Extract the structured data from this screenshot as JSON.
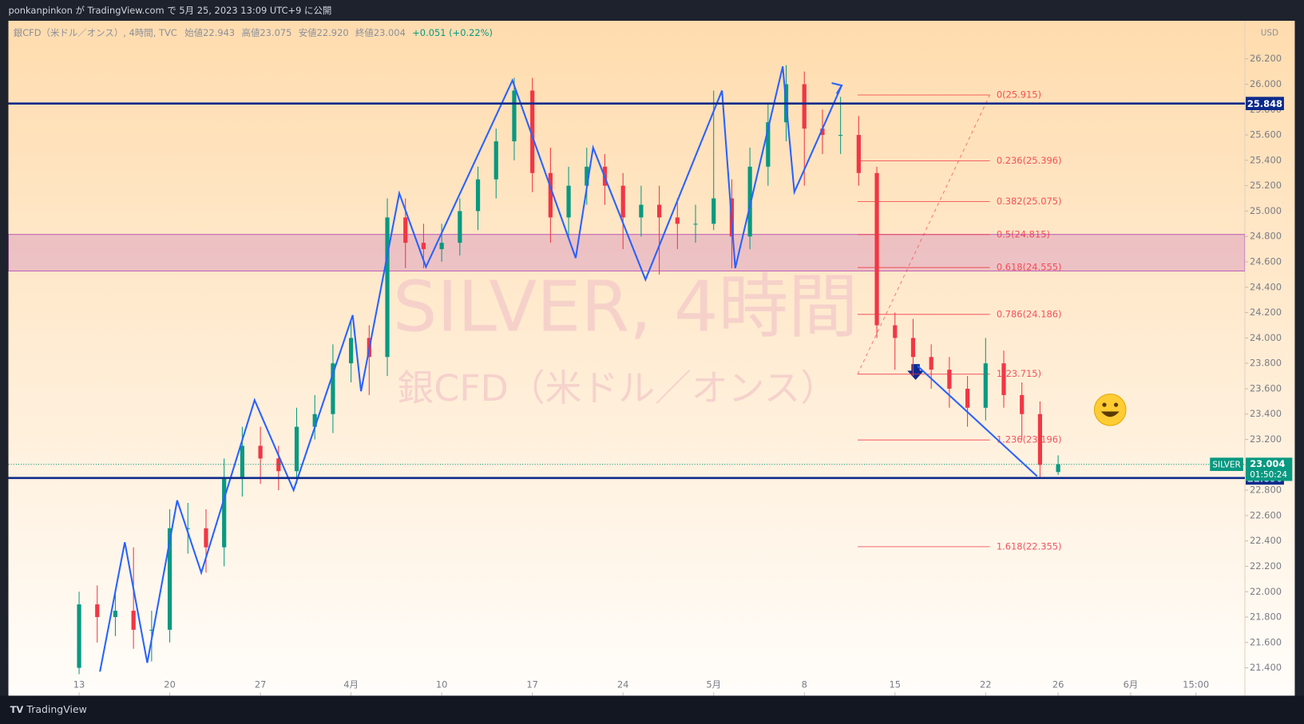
{
  "header": {
    "published": "ponkanpinkon が TradingView.com で 5月 25, 2023 13:09 UTC+9 に公開"
  },
  "chart_data": {
    "type": "candlestick",
    "symbol_info": "銀CFD（米ドル／オンス）, 4時間, TVC",
    "legend": [
      "始値22.943",
      "高値23.075",
      "安値22.920",
      "終値23.004",
      "+0.051 (+0.22%)"
    ],
    "currency": "USD",
    "watermark": "SILVER, 4時間",
    "watermark_sub": "銀CFD（米ドル／オンス）",
    "up_color": "#089981",
    "down_color": "#f23645",
    "x": [
      0,
      1,
      2,
      3,
      4,
      5,
      6,
      7,
      8,
      9,
      10,
      11,
      12,
      13,
      14,
      15,
      16,
      17,
      18,
      19,
      20,
      21,
      22,
      23,
      24,
      25,
      26,
      27,
      28,
      29,
      30,
      31,
      32,
      33,
      34,
      35,
      36,
      37,
      38,
      39,
      40,
      41,
      42,
      43,
      44,
      45,
      46,
      47,
      48,
      49,
      50,
      51,
      52,
      53,
      54
    ],
    "open": [
      21.4,
      21.9,
      21.8,
      21.85,
      21.7,
      21.7,
      22.5,
      22.5,
      22.35,
      22.9,
      23.15,
      23.05,
      22.95,
      23.3,
      23.4,
      23.8,
      24.0,
      23.85,
      24.95,
      24.75,
      24.7,
      24.75,
      25.0,
      25.25,
      25.55,
      25.95,
      25.3,
      24.95,
      25.2,
      25.35,
      25.2,
      24.95,
      25.05,
      24.95,
      24.9,
      24.9,
      25.1,
      24.8,
      25.35,
      25.7,
      26.0,
      25.65,
      25.6,
      25.6,
      25.3,
      24.1,
      24.0,
      23.85,
      23.75,
      23.6,
      23.45,
      23.8,
      23.55,
      23.4,
      22.943
    ],
    "high": [
      22.0,
      22.05,
      22.0,
      22.35,
      21.85,
      22.65,
      22.7,
      22.65,
      23.05,
      23.3,
      23.3,
      23.15,
      23.45,
      23.55,
      23.95,
      24.15,
      24.1,
      25.1,
      25.1,
      24.9,
      24.9,
      25.1,
      25.35,
      25.65,
      26.05,
      26.05,
      25.5,
      25.35,
      25.5,
      25.45,
      25.3,
      25.2,
      25.2,
      25.1,
      25.05,
      25.95,
      25.25,
      25.5,
      25.85,
      26.15,
      26.1,
      25.8,
      25.9,
      25.75,
      25.35,
      24.2,
      24.15,
      23.95,
      23.85,
      23.7,
      24.0,
      23.9,
      23.65,
      23.5,
      23.075
    ],
    "low": [
      21.35,
      21.6,
      21.65,
      21.55,
      21.45,
      21.6,
      22.3,
      22.15,
      22.2,
      22.75,
      22.85,
      22.8,
      22.85,
      23.2,
      23.25,
      23.65,
      23.55,
      23.7,
      24.55,
      24.55,
      24.6,
      24.65,
      24.85,
      25.1,
      25.4,
      25.15,
      24.75,
      24.8,
      25.05,
      25.05,
      24.7,
      24.8,
      24.5,
      24.7,
      24.75,
      24.85,
      24.55,
      24.7,
      25.2,
      25.55,
      25.2,
      25.45,
      25.45,
      25.2,
      24.0,
      23.75,
      23.7,
      23.6,
      23.45,
      23.3,
      23.35,
      23.45,
      23.2,
      22.9,
      22.92
    ],
    "close": [
      21.9,
      21.8,
      21.85,
      21.7,
      21.7,
      22.5,
      22.5,
      22.35,
      22.9,
      23.15,
      23.05,
      22.95,
      23.3,
      23.4,
      23.8,
      24.0,
      23.85,
      24.95,
      24.75,
      24.7,
      24.75,
      25.0,
      25.25,
      25.55,
      25.95,
      25.3,
      24.95,
      25.2,
      25.35,
      25.2,
      24.95,
      25.05,
      24.95,
      24.9,
      24.9,
      25.1,
      24.8,
      25.35,
      25.7,
      26.0,
      25.65,
      25.6,
      25.6,
      25.3,
      24.1,
      24.0,
      23.85,
      23.75,
      23.6,
      23.45,
      23.8,
      23.55,
      23.4,
      23.0,
      23.004
    ],
    "xlim": [
      -3.9,
      64.3
    ],
    "xticks": [
      {
        "value": 0,
        "label": "13"
      },
      {
        "value": 5,
        "label": "20"
      },
      {
        "value": 10,
        "label": "27"
      },
      {
        "value": 15,
        "label": "4月"
      },
      {
        "value": 20,
        "label": "10"
      },
      {
        "value": 25,
        "label": "17"
      },
      {
        "value": 30,
        "label": "24"
      },
      {
        "value": 35,
        "label": "5月"
      },
      {
        "value": 40,
        "label": "8"
      },
      {
        "value": 45,
        "label": "15"
      },
      {
        "value": 50,
        "label": "22"
      },
      {
        "value": 54,
        "label": "26"
      },
      {
        "value": 58,
        "label": "6月"
      },
      {
        "value": 61.6,
        "label": "15:00"
      }
    ],
    "ylim": [
      21.18,
      26.5
    ],
    "yticks": [
      {
        "value": 21.4,
        "label": "21.400"
      },
      {
        "value": 21.6,
        "label": "21.600"
      },
      {
        "value": 21.8,
        "label": "21.800"
      },
      {
        "value": 22.0,
        "label": "22.000"
      },
      {
        "value": 22.2,
        "label": "22.200"
      },
      {
        "value": 22.4,
        "label": "22.400"
      },
      {
        "value": 22.6,
        "label": "22.600"
      },
      {
        "value": 22.8,
        "label": "22.800"
      },
      {
        "value": 23.0,
        "label": "23.000"
      },
      {
        "value": 23.2,
        "label": "23.200"
      },
      {
        "value": 23.4,
        "label": "23.400"
      },
      {
        "value": 23.6,
        "label": "23.600"
      },
      {
        "value": 23.8,
        "label": "23.800"
      },
      {
        "value": 24.0,
        "label": "24.000"
      },
      {
        "value": 24.2,
        "label": "24.200"
      },
      {
        "value": 24.4,
        "label": "24.400"
      },
      {
        "value": 24.6,
        "label": "24.600"
      },
      {
        "value": 24.8,
        "label": "24.800"
      },
      {
        "value": 25.0,
        "label": "25.000"
      },
      {
        "value": 25.2,
        "label": "25.200"
      },
      {
        "value": 25.4,
        "label": "25.400"
      },
      {
        "value": 25.6,
        "label": "25.600"
      },
      {
        "value": 25.8,
        "label": "25.800"
      },
      {
        "value": 26.0,
        "label": "26.000"
      },
      {
        "value": 26.2,
        "label": "26.200"
      }
    ],
    "levels": [
      {
        "value": 25.848,
        "color": "#0c2a8c"
      },
      {
        "value": 22.896,
        "color": "#0c2a8c"
      }
    ],
    "last_price": {
      "symbol": "SILVER",
      "value": 23.004,
      "countdown": "01:50:24",
      "color": "#089981"
    },
    "zone": {
      "low": 24.528,
      "high": 24.816,
      "color": "#c060b8"
    },
    "fib": {
      "x": [
        42.94,
        50.23
      ],
      "color": "#f23645",
      "levels": [
        {
          "value": 25.915,
          "label": "0(25.915)"
        },
        {
          "value": 25.396,
          "label": "0.236(25.396)"
        },
        {
          "value": 25.075,
          "label": "0.382(25.075)"
        },
        {
          "value": 24.815,
          "label": "0.5(24.815)"
        },
        {
          "value": 24.555,
          "label": "0.618(24.555)"
        },
        {
          "value": 24.186,
          "label": "0.786(24.186)"
        },
        {
          "value": 23.715,
          "label": "1(23.715)"
        },
        {
          "value": 23.196,
          "label": "1.236(23.196)"
        },
        {
          "value": 22.355,
          "label": "1.618(22.355)"
        }
      ]
    },
    "drawings": [
      {
        "color": "#2962ff",
        "x": [
          1.15,
          2.52,
          3.76,
          5.41,
          6.74,
          9.68,
          11.83,
          15.09,
          15.55,
          17.66,
          19.13,
          23.9,
          27.39,
          28.35,
          31.24,
          35.46,
          36.19,
          38.81,
          39.45,
          42.06
        ],
        "y": [
          21.37,
          22.39,
          21.44,
          22.72,
          22.15,
          23.51,
          22.8,
          24.18,
          23.58,
          25.14,
          24.56,
          26.03,
          24.63,
          25.5,
          24.46,
          25.95,
          24.55,
          26.14,
          25.15,
          25.99
        ]
      },
      {
        "color": "#2962ff",
        "x": [
          46.24,
          52.84
        ],
        "y": [
          23.78,
          22.91
        ]
      }
    ]
  },
  "footer": {
    "brand": "TradingView"
  }
}
